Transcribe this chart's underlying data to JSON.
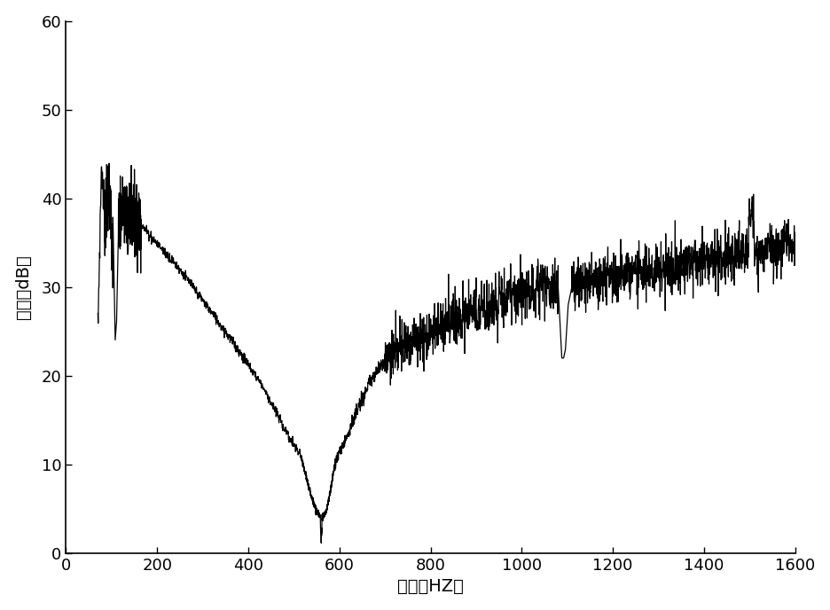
{
  "xlabel": "频率（HZ）",
  "ylabel": "数値（dB）",
  "xlim": [
    0,
    1600
  ],
  "ylim": [
    0,
    60
  ],
  "xticks": [
    0,
    200,
    400,
    600,
    800,
    1000,
    1200,
    1400,
    1600
  ],
  "yticks": [
    0,
    10,
    20,
    30,
    40,
    50,
    60
  ],
  "line_color": "#000000",
  "background_color": "#ffffff",
  "figsize": [
    9.36,
    6.88
  ],
  "dpi": 100
}
